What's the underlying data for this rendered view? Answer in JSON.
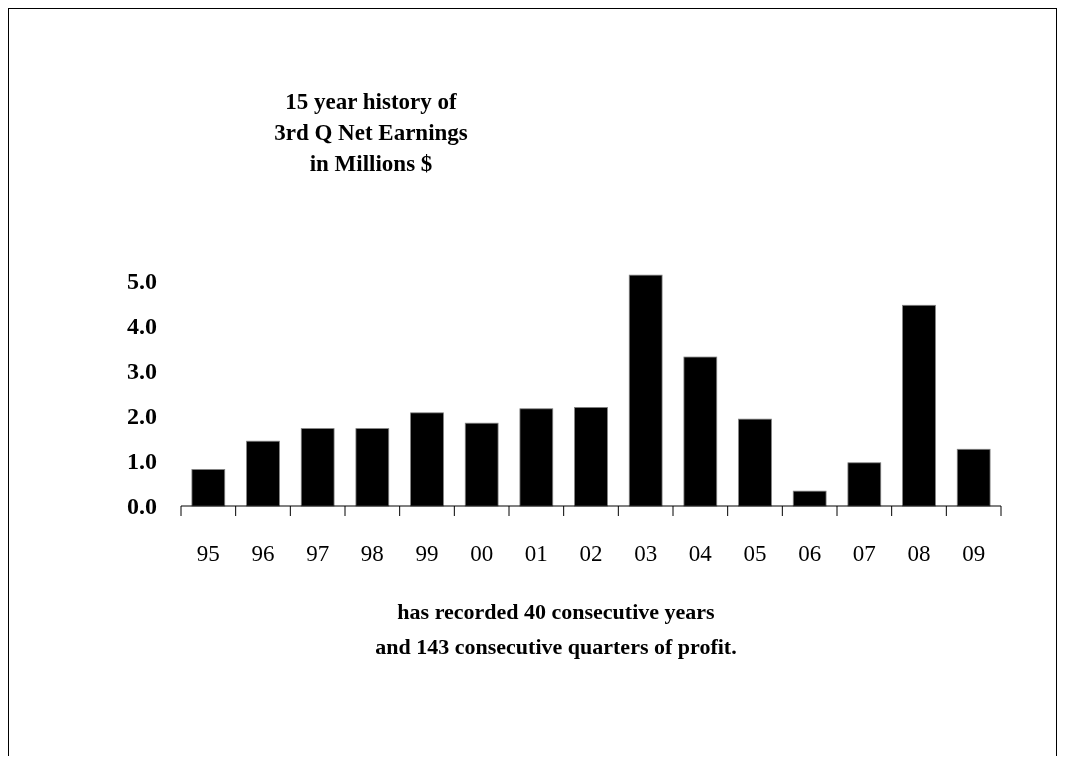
{
  "chart_data": {
    "type": "bar",
    "title": "15 year history of\n3rd Q Net Earnings\nin Millions $",
    "categories": [
      "95",
      "96",
      "97",
      "98",
      "99",
      "00",
      "01",
      "02",
      "03",
      "04",
      "05",
      "06",
      "07",
      "08",
      "09"
    ],
    "values": [
      0.81,
      1.44,
      1.72,
      1.72,
      2.07,
      1.84,
      2.16,
      2.19,
      5.13,
      3.31,
      1.93,
      0.33,
      0.96,
      4.46,
      1.26
    ],
    "color": "#000000",
    "ylim": [
      0,
      5.2
    ],
    "yticks": [
      {
        "value": 0,
        "label": "0.0"
      },
      {
        "value": 1,
        "label": "1.0"
      },
      {
        "value": 2,
        "label": "2.0"
      },
      {
        "value": 3,
        "label": "3.0"
      },
      {
        "value": 4,
        "label": "4.0"
      },
      {
        "value": 5,
        "label": "5.0"
      }
    ],
    "grid": false,
    "annotations": [
      "has recorded 40 consecutive years",
      "and 143 consecutive quarters of profit."
    ]
  }
}
